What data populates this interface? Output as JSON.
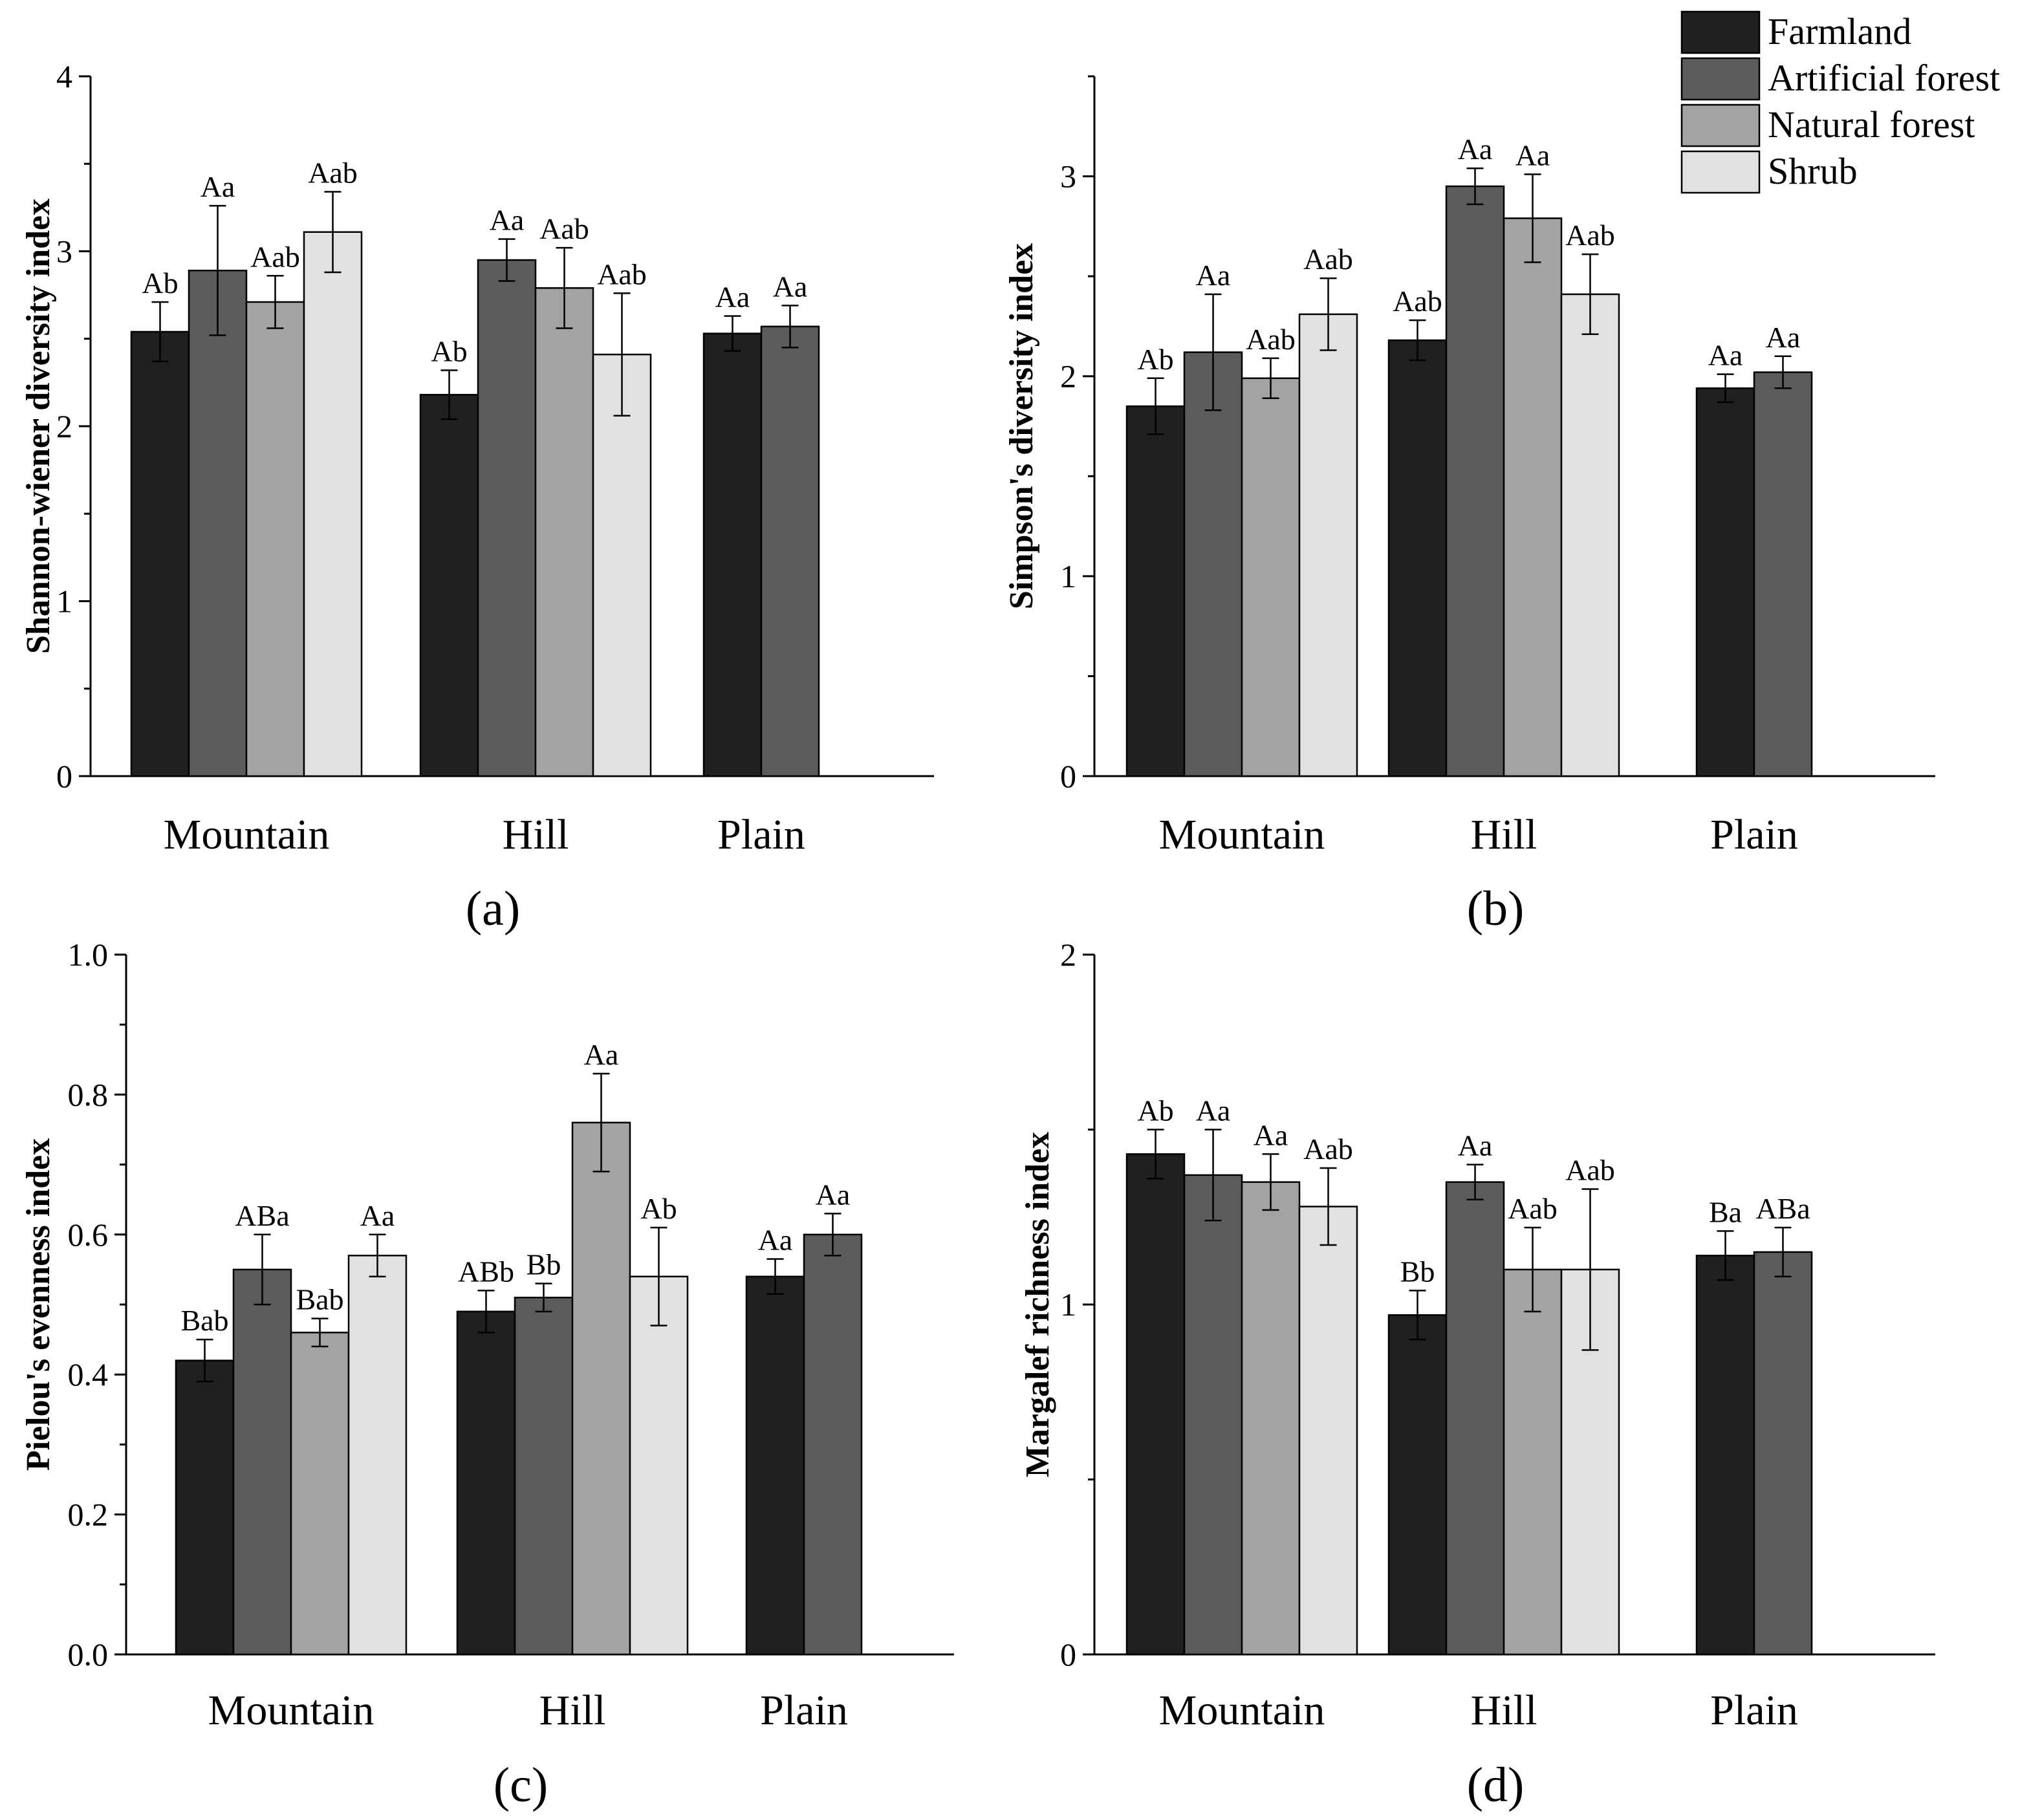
{
  "colors": {
    "Farmland": "#202020",
    "Artificial forest": "#5c5c5c",
    "Natural forest": "#a3a3a3",
    "Shrub": "#e1e1e1"
  },
  "legend": {
    "entries": [
      "Farmland",
      "Artificial forest",
      "Natural forest",
      "Shrub"
    ],
    "placement": "top-right"
  },
  "chart_data": [
    {
      "type": "bar",
      "panel": "(a)",
      "ylabel": "Shannon-wiener diversity index",
      "ylim": [
        0,
        4
      ],
      "yticks": [
        "0",
        "1",
        "2",
        "3",
        "4"
      ],
      "categories": [
        "Mountain",
        "Hill",
        "Plain"
      ],
      "series": [
        {
          "name": "Farmland",
          "values": [
            2.54,
            2.18,
            2.53
          ],
          "errors": [
            0.17,
            0.14,
            0.1
          ],
          "labels": [
            "Ab",
            "Ab",
            "Aa"
          ]
        },
        {
          "name": "Artificial forest",
          "values": [
            2.89,
            2.95,
            2.57
          ],
          "errors": [
            0.37,
            0.12,
            0.12
          ],
          "labels": [
            "Aa",
            "Aa",
            "Aa"
          ]
        },
        {
          "name": "Natural forest",
          "values": [
            2.71,
            2.79,
            null
          ],
          "errors": [
            0.15,
            0.23,
            null
          ],
          "labels": [
            "Aab",
            "Aab",
            ""
          ]
        },
        {
          "name": "Shrub",
          "values": [
            3.11,
            2.41,
            null
          ],
          "errors": [
            0.23,
            0.35,
            null
          ],
          "labels": [
            "Aab",
            "Aab",
            ""
          ]
        }
      ]
    },
    {
      "type": "bar",
      "panel": "(b)",
      "ylabel": "Simpson's diversity index",
      "ylim": [
        0,
        3.5
      ],
      "yticks": [
        "0",
        "1",
        "2",
        "3"
      ],
      "categories": [
        "Mountain",
        "Hill",
        "Plain"
      ],
      "series": [
        {
          "name": "Farmland",
          "values": [
            1.85,
            2.18,
            1.94
          ],
          "errors": [
            0.14,
            0.1,
            0.07
          ],
          "labels": [
            "Ab",
            "Aab",
            "Aa"
          ]
        },
        {
          "name": "Artificial forest",
          "values": [
            2.12,
            2.95,
            2.02
          ],
          "errors": [
            0.29,
            0.09,
            0.08
          ],
          "labels": [
            "Aa",
            "Aa",
            "Aa"
          ]
        },
        {
          "name": "Natural forest",
          "values": [
            1.99,
            2.79,
            null
          ],
          "errors": [
            0.1,
            0.22,
            null
          ],
          "labels": [
            "Aab",
            "Aa",
            ""
          ]
        },
        {
          "name": "Shrub",
          "values": [
            2.31,
            2.41,
            null
          ],
          "errors": [
            0.18,
            0.2,
            null
          ],
          "labels": [
            "Aab",
            "Aab",
            ""
          ]
        }
      ]
    },
    {
      "type": "bar",
      "panel": "(c)",
      "ylabel": "Pielou's evenness index",
      "ylim": [
        0,
        1
      ],
      "yticks": [
        "0.0",
        "0.2",
        "0.4",
        "0.6",
        "0.8",
        "1.0"
      ],
      "categories": [
        "Mountain",
        "Hill",
        "Plain"
      ],
      "series": [
        {
          "name": "Farmland",
          "values": [
            0.42,
            0.49,
            0.54
          ],
          "errors": [
            0.03,
            0.03,
            0.025
          ],
          "labels": [
            "Bab",
            "ABb",
            "Aa"
          ]
        },
        {
          "name": "Artificial forest",
          "values": [
            0.55,
            0.51,
            0.6
          ],
          "errors": [
            0.05,
            0.02,
            0.03
          ],
          "labels": [
            "ABa",
            "Bb",
            "Aa"
          ]
        },
        {
          "name": "Natural forest",
          "values": [
            0.46,
            0.76,
            null
          ],
          "errors": [
            0.02,
            0.07,
            null
          ],
          "labels": [
            "Bab",
            "Aa",
            ""
          ]
        },
        {
          "name": "Shrub",
          "values": [
            0.57,
            0.54,
            null
          ],
          "errors": [
            0.03,
            0.07,
            null
          ],
          "labels": [
            "Aa",
            "Ab",
            ""
          ]
        }
      ]
    },
    {
      "type": "bar",
      "panel": "(d)",
      "ylabel": "Margalef richness index",
      "ylim": [
        0,
        2
      ],
      "yticks": [
        "0",
        "1",
        "2"
      ],
      "categories": [
        "Mountain",
        "Hill",
        "Plain"
      ],
      "series": [
        {
          "name": "Farmland",
          "values": [
            1.43,
            0.97,
            1.14
          ],
          "errors": [
            0.07,
            0.07,
            0.07
          ],
          "labels": [
            "Ab",
            "Bb",
            "Ba"
          ]
        },
        {
          "name": "Artificial forest",
          "values": [
            1.37,
            1.35,
            1.15
          ],
          "errors": [
            0.13,
            0.05,
            0.07
          ],
          "labels": [
            "Aa",
            "Aa",
            "ABa"
          ]
        },
        {
          "name": "Natural forest",
          "values": [
            1.35,
            1.1,
            null
          ],
          "errors": [
            0.08,
            0.12,
            null
          ],
          "labels": [
            "Aa",
            "Aab",
            ""
          ]
        },
        {
          "name": "Shrub",
          "values": [
            1.28,
            1.1,
            null
          ],
          "errors": [
            0.11,
            0.23,
            null
          ],
          "labels": [
            "Aab",
            "Aab",
            ""
          ]
        }
      ]
    }
  ]
}
